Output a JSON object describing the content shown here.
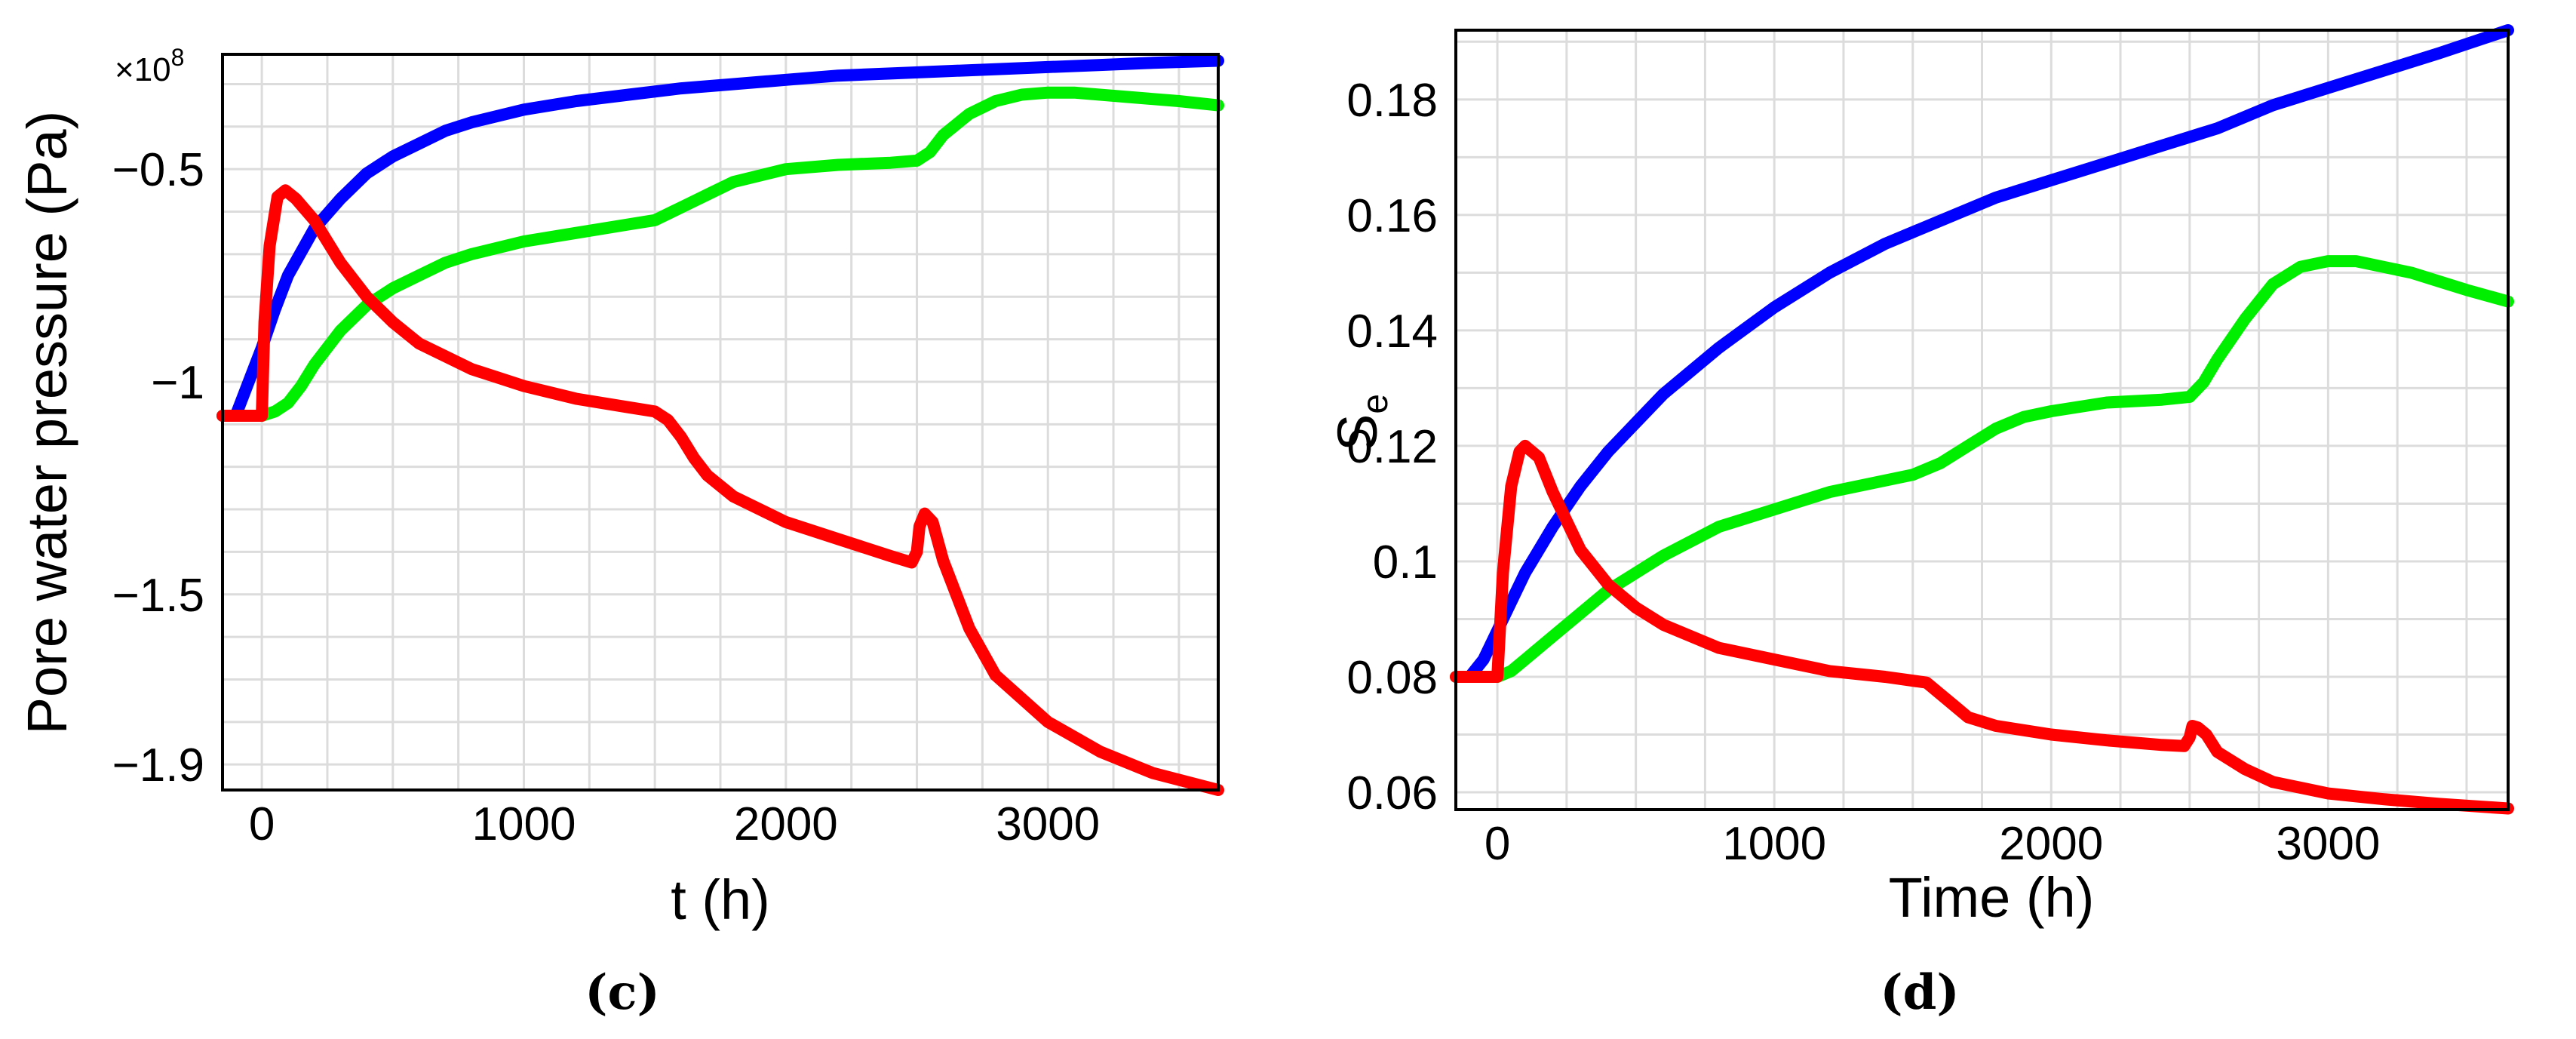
{
  "chart_data": [
    {
      "type": "line",
      "caption": "(c)",
      "xlabel": "t (h)",
      "ylabel": "Pore water pressure (Pa)",
      "multiplier_base": "×10",
      "multiplier_exp": "8",
      "xlim": [
        -150,
        3650
      ],
      "ylim": [
        -1.96,
        -0.23
      ],
      "xticks": [
        0,
        1000,
        2000,
        3000
      ],
      "yticks": [
        -0.5,
        -1,
        -1.5,
        -1.9
      ],
      "ytick_labels": [
        "−0.5",
        "−1",
        "−1.5",
        "−1.9"
      ],
      "grid": true,
      "series": [
        {
          "color": "#0000ff",
          "x": [
            -150,
            -100,
            -50,
            0,
            50,
            100,
            200,
            300,
            400,
            500,
            600,
            700,
            800,
            1000,
            1200,
            1400,
            1600,
            1800,
            2000,
            2200,
            2400,
            2600,
            2800,
            3000,
            3200,
            3400,
            3650
          ],
          "y": [
            -1.08,
            -1.08,
            -1.0,
            -0.92,
            -0.83,
            -0.75,
            -0.64,
            -0.57,
            -0.51,
            -0.47,
            -0.44,
            -0.41,
            -0.39,
            -0.36,
            -0.34,
            -0.325,
            -0.31,
            -0.3,
            -0.29,
            -0.28,
            -0.275,
            -0.27,
            -0.265,
            -0.26,
            -0.255,
            -0.25,
            -0.245
          ]
        },
        {
          "color": "#00ee00",
          "x": [
            -150,
            0,
            50,
            100,
            150,
            200,
            300,
            400,
            500,
            600,
            700,
            800,
            1000,
            1200,
            1400,
            1500,
            1600,
            1700,
            1800,
            2000,
            2200,
            2400,
            2500,
            2550,
            2600,
            2700,
            2800,
            2900,
            3000,
            3100,
            3300,
            3500,
            3650
          ],
          "y": [
            -1.08,
            -1.08,
            -1.07,
            -1.05,
            -1.01,
            -0.96,
            -0.88,
            -0.82,
            -0.78,
            -0.75,
            -0.72,
            -0.7,
            -0.67,
            -0.65,
            -0.63,
            -0.62,
            -0.59,
            -0.56,
            -0.53,
            -0.5,
            -0.49,
            -0.485,
            -0.48,
            -0.46,
            -0.42,
            -0.37,
            -0.34,
            -0.325,
            -0.32,
            -0.32,
            -0.33,
            -0.34,
            -0.35
          ]
        },
        {
          "color": "#ff0000",
          "x": [
            -150,
            0,
            10,
            30,
            60,
            90,
            130,
            200,
            300,
            400,
            500,
            600,
            800,
            1000,
            1200,
            1400,
            1500,
            1550,
            1600,
            1650,
            1700,
            1800,
            2000,
            2200,
            2400,
            2480,
            2500,
            2510,
            2530,
            2560,
            2600,
            2700,
            2800,
            3000,
            3200,
            3400,
            3650
          ],
          "y": [
            -1.08,
            -1.08,
            -0.86,
            -0.68,
            -0.565,
            -0.55,
            -0.57,
            -0.62,
            -0.72,
            -0.8,
            -0.86,
            -0.91,
            -0.97,
            -1.01,
            -1.04,
            -1.06,
            -1.07,
            -1.09,
            -1.13,
            -1.18,
            -1.22,
            -1.27,
            -1.33,
            -1.37,
            -1.41,
            -1.425,
            -1.4,
            -1.34,
            -1.31,
            -1.33,
            -1.42,
            -1.58,
            -1.69,
            -1.8,
            -1.87,
            -1.92,
            -1.96
          ]
        }
      ]
    },
    {
      "type": "line",
      "caption": "(d)",
      "xlabel": "Time (h)",
      "ylabel_main": "S",
      "ylabel_sub": "e",
      "xlim": [
        -150,
        3650
      ],
      "ylim": [
        0.057,
        0.192
      ],
      "xticks": [
        0,
        1000,
        2000,
        3000
      ],
      "yticks": [
        0.06,
        0.08,
        0.1,
        0.12,
        0.14,
        0.16,
        0.18
      ],
      "ytick_labels": [
        "0.06",
        "0.08",
        "0.1",
        "0.12",
        "0.14",
        "0.16",
        "0.18"
      ],
      "grid": true,
      "series": [
        {
          "color": "#0000ff",
          "x": [
            -100,
            -50,
            0,
            50,
            100,
            200,
            300,
            400,
            500,
            600,
            800,
            1000,
            1200,
            1400,
            1600,
            1800,
            2000,
            2200,
            2400,
            2600,
            2800,
            3000,
            3200,
            3400,
            3650
          ],
          "y": [
            0.08,
            0.083,
            0.088,
            0.093,
            0.098,
            0.106,
            0.113,
            0.119,
            0.124,
            0.129,
            0.137,
            0.144,
            0.15,
            0.155,
            0.159,
            0.163,
            0.166,
            0.169,
            0.172,
            0.175,
            0.179,
            0.182,
            0.185,
            0.188,
            0.192
          ]
        },
        {
          "color": "#00ee00",
          "x": [
            -150,
            0,
            50,
            100,
            200,
            300,
            400,
            500,
            600,
            800,
            1000,
            1200,
            1400,
            1500,
            1600,
            1700,
            1800,
            1900,
            2000,
            2200,
            2400,
            2500,
            2550,
            2600,
            2700,
            2800,
            2900,
            3000,
            3100,
            3300,
            3500,
            3650
          ],
          "y": [
            0.08,
            0.08,
            0.081,
            0.083,
            0.087,
            0.091,
            0.095,
            0.098,
            0.101,
            0.106,
            0.109,
            0.112,
            0.114,
            0.115,
            0.117,
            0.12,
            0.123,
            0.125,
            0.126,
            0.1275,
            0.128,
            0.1285,
            0.131,
            0.135,
            0.142,
            0.148,
            0.151,
            0.152,
            0.152,
            0.15,
            0.147,
            0.145
          ]
        },
        {
          "color": "#ff0000",
          "x": [
            -150,
            0,
            20,
            50,
            80,
            100,
            150,
            200,
            300,
            400,
            500,
            600,
            800,
            1000,
            1200,
            1400,
            1550,
            1600,
            1650,
            1700,
            1800,
            2000,
            2200,
            2400,
            2480,
            2500,
            2510,
            2530,
            2560,
            2600,
            2700,
            2800,
            3000,
            3200,
            3400,
            3650
          ],
          "y": [
            0.08,
            0.08,
            0.098,
            0.113,
            0.119,
            0.12,
            0.118,
            0.112,
            0.102,
            0.096,
            0.092,
            0.089,
            0.085,
            0.083,
            0.081,
            0.08,
            0.079,
            0.077,
            0.075,
            0.073,
            0.0715,
            0.07,
            0.069,
            0.0682,
            0.068,
            0.0695,
            0.0715,
            0.0712,
            0.07,
            0.067,
            0.064,
            0.0618,
            0.0598,
            0.0588,
            0.058,
            0.0572
          ]
        }
      ]
    }
  ]
}
